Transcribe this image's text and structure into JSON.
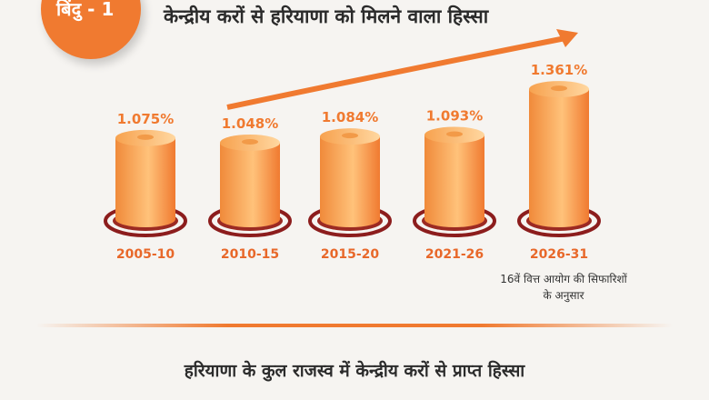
{
  "badge": "बिंदु - 1",
  "title": "केन्द्रीय करों से हरियाणा को मिलने वाला हिस्सा",
  "footer": "हरियाणा के कुल राजस्व में केन्द्रीय करों से प्राप्त हिस्सा",
  "note": "16वें वित्त आयोग की सिफारिशों के अनुसार",
  "colors": {
    "accent": "#f07a30",
    "ring": "#8c1d1d",
    "text": "#2b2b2b"
  },
  "chart_data": {
    "type": "bar",
    "categories": [
      "2005-10",
      "2010-15",
      "2015-20",
      "2021-26",
      "2026-31"
    ],
    "values": [
      1.075,
      1.048,
      1.084,
      1.093,
      1.361
    ],
    "value_labels": [
      "1.075%",
      "1.048%",
      "1.084%",
      "1.093%",
      "1.361%"
    ],
    "unit": "%",
    "trend_arrow": "up"
  }
}
